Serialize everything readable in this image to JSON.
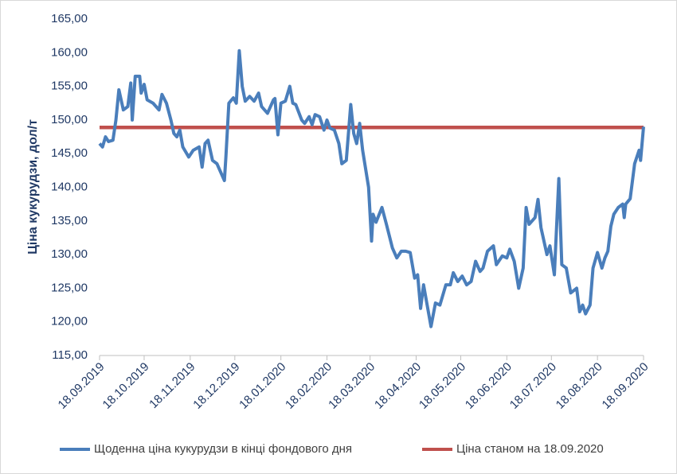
{
  "chart_data": {
    "type": "line",
    "ylabel": "Ціна кукурудзи, дол/т",
    "xlim": [
      "18.09.2019",
      "18.09.2020"
    ],
    "xticks": [
      "18.09.2019",
      "18.10.2019",
      "18.11.2019",
      "18.12.2019",
      "18.01.2020",
      "18.02.2020",
      "18.03.2020",
      "18.04.2020",
      "18.05.2020",
      "18.06.2020",
      "18.07.2020",
      "18.08.2020",
      "18.09.2020"
    ],
    "ylim": [
      115,
      165
    ],
    "yticks": [
      {
        "value": 115,
        "label": "115,00"
      },
      {
        "value": 120,
        "label": "120,00"
      },
      {
        "value": 125,
        "label": "125,00"
      },
      {
        "value": 130,
        "label": "130,00"
      },
      {
        "value": 135,
        "label": "135,00"
      },
      {
        "value": 140,
        "label": "140,00"
      },
      {
        "value": 145,
        "label": "145,00"
      },
      {
        "value": 150,
        "label": "150,00"
      },
      {
        "value": 155,
        "label": "155,00"
      },
      {
        "value": 160,
        "label": "160,00"
      },
      {
        "value": 165,
        "label": "165,00"
      }
    ],
    "grid": false,
    "legend": "bottom",
    "series": [
      {
        "name": "Щоденна ціна кукурудзи в кінці фондового дня",
        "color": "#4a7ebb",
        "x": [
          "18.09.2019",
          "20.09.2019",
          "22.09.2019",
          "24.09.2019",
          "27.09.2019",
          "29.09.2019",
          "01.10.2019",
          "04.10.2019",
          "07.10.2019",
          "09.10.2019",
          "10.10.2019",
          "12.10.2019",
          "15.10.2019",
          "16.10.2019",
          "18.10.2019",
          "20.10.2019",
          "24.10.2019",
          "28.10.2019",
          "30.10.2019",
          "02.11.2019",
          "05.11.2019",
          "07.11.2019",
          "09.11.2019",
          "11.11.2019",
          "13.11.2019",
          "17.11.2019",
          "20.11.2019",
          "24.11.2019",
          "26.11.2019",
          "28.11.2019",
          "30.11.2019",
          "03.12.2019",
          "06.12.2019",
          "11.12.2019",
          "12.12.2019",
          "14.12.2019",
          "17.12.2019",
          "19.12.2019",
          "21.12.2019",
          "23.12.2019",
          "25.12.2019",
          "28.12.2019",
          "31.12.2019",
          "03.01.2020",
          "05.01.2020",
          "09.01.2020",
          "13.01.2020",
          "14.01.2020",
          "16.01.2020",
          "18.01.2020",
          "21.01.2020",
          "24.01.2020",
          "26.01.2020",
          "28.01.2020",
          "01.02.2020",
          "03.02.2020",
          "06.02.2020",
          "08.02.2020",
          "10.02.2020",
          "13.02.2020",
          "16.02.2020",
          "18.02.2020",
          "20.02.2020",
          "23.02.2020",
          "26.02.2020",
          "28.02.2020",
          "02.03.2020",
          "05.03.2020",
          "07.03.2020",
          "09.03.2020",
          "11.03.2020",
          "13.03.2020",
          "17.03.2020",
          "19.03.2020",
          "20.03.2020",
          "22.03.2020",
          "26.03.2020",
          "29.03.2020",
          "02.04.2020",
          "05.04.2020",
          "08.04.2020",
          "11.04.2020",
          "14.04.2020",
          "17.04.2020",
          "19.04.2020",
          "21.04.2020",
          "23.04.2020",
          "25.04.2020",
          "28.04.2020",
          "01.05.2020",
          "04.05.2020",
          "08.05.2020",
          "11.05.2020",
          "13.05.2020",
          "16.05.2020",
          "19.05.2020",
          "22.05.2020",
          "25.05.2020",
          "28.05.2020",
          "31.05.2020",
          "02.06.2020",
          "05.06.2020",
          "09.06.2020",
          "11.06.2020",
          "15.06.2020",
          "18.06.2020",
          "20.06.2020",
          "23.06.2020",
          "26.06.2020",
          "29.06.2020",
          "01.07.2020",
          "03.07.2020",
          "07.07.2020",
          "09.07.2020",
          "11.07.2020",
          "15.07.2020",
          "17.07.2020",
          "20.07.2020",
          "23.07.2020",
          "25.07.2020",
          "28.07.2020",
          "31.07.2020",
          "04.08.2020",
          "06.08.2020",
          "08.08.2020",
          "10.08.2020",
          "13.08.2020",
          "15.08.2020",
          "18.08.2020",
          "21.08.2020",
          "23.08.2020",
          "25.08.2020",
          "27.08.2020",
          "29.08.2020",
          "01.09.2020",
          "04.09.2020",
          "05.09.2020",
          "06.09.2020",
          "09.09.2020",
          "12.09.2020",
          "15.09.2020",
          "16.09.2020",
          "18.09.2020"
        ],
        "values": [
          146.5,
          146,
          147.5,
          146.8,
          147,
          150,
          154.5,
          151.5,
          152,
          155.5,
          150,
          156.5,
          156.5,
          154,
          155.3,
          153,
          152.5,
          151.5,
          153.8,
          152.5,
          150,
          148,
          147.5,
          148.5,
          146,
          144.5,
          145.5,
          146,
          143,
          146.5,
          147,
          144,
          143.5,
          141,
          144.5,
          152.5,
          153.3,
          152.5,
          160.3,
          155,
          152.8,
          153.5,
          152.8,
          154,
          152,
          151,
          153,
          153.2,
          147.8,
          152.5,
          152.8,
          155,
          152.5,
          152.3,
          150,
          149.5,
          150.5,
          149.3,
          150.8,
          150.5,
          148.5,
          150,
          148.8,
          148.5,
          146.5,
          143.5,
          144,
          152.3,
          148,
          146.5,
          149.5,
          145.5,
          140,
          132,
          136,
          134.8,
          137,
          134.5,
          131,
          129.5,
          130.5,
          130.5,
          130.3,
          126.5,
          127,
          122,
          125.5,
          123,
          119.3,
          122.8,
          122.5,
          125.5,
          125.5,
          127.3,
          126,
          126.8,
          125.5,
          126,
          129,
          127.5,
          128,
          130.5,
          131.3,
          128.5,
          129.8,
          129.5,
          130.8,
          129,
          125,
          128,
          137,
          134.5,
          135.5,
          138.2,
          134,
          130,
          131.3,
          127,
          141.3,
          128.5,
          128,
          124.3,
          125,
          121.5,
          122.5,
          121.2,
          122.5,
          128,
          130.3,
          128,
          129.5,
          130.5,
          134.2,
          136,
          137,
          137.5,
          135.5,
          137.5,
          138.3,
          143.5,
          145.5,
          144,
          149
        ]
      },
      {
        "name": "Ціна станом на 18.09.2020",
        "color": "#c0504d",
        "x": [
          "18.09.2019",
          "18.09.2020"
        ],
        "values": [
          148.9,
          148.9
        ]
      }
    ]
  }
}
